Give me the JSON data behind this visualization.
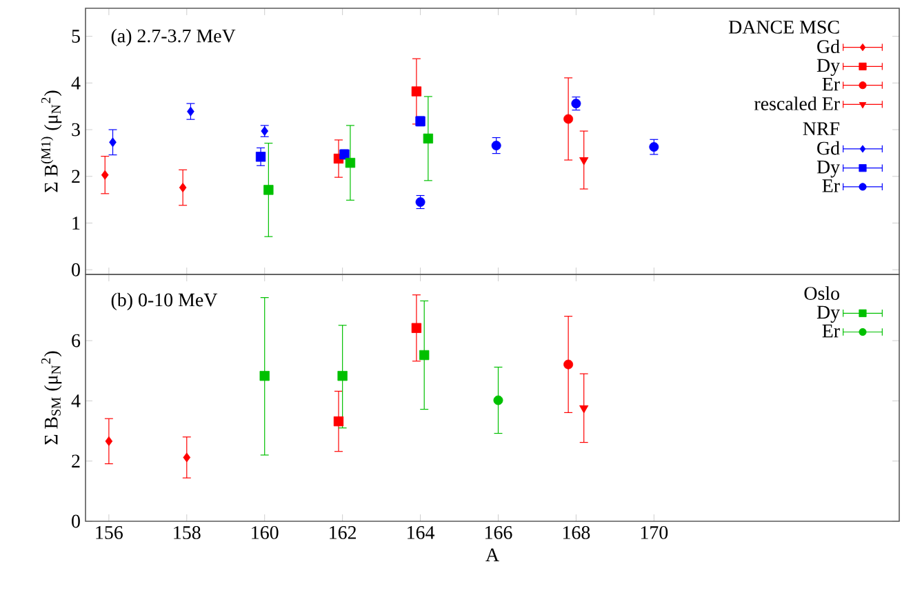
{
  "chart_data": [
    {
      "type": "scatter",
      "ylabel": "Σ B$^{(M1)}$ (μ$_{N}$$^{2}$)",
      "annotations": [
        "(a)  2.7-3.7 MeV",
        "DANCE MSC",
        "NRF"
      ],
      "xlim": [
        155.4,
        176.3
      ],
      "xticks": [
        156,
        158,
        160,
        162,
        164,
        166,
        168,
        170
      ],
      "ylim": [
        -0.1,
        5.6
      ],
      "yticks": [
        0,
        1,
        2,
        3,
        4,
        5
      ],
      "tick_labels": "y",
      "legend": "top right",
      "series": [
        {
          "name": "Gd",
          "color": "#ff0000",
          "marker": "diamond",
          "x": [
            155.9,
            157.9
          ],
          "values": [
            2.03,
            1.76
          ],
          "errors": [
            0.4,
            0.38
          ]
        },
        {
          "name": "Dy",
          "color": "#ff0000",
          "marker": "square",
          "x": [
            161.9,
            163.9
          ],
          "values": [
            2.38,
            3.82
          ],
          "errors": [
            0.4,
            0.7
          ]
        },
        {
          "name": "Er",
          "color": "#ff0000",
          "marker": "circle",
          "x": [
            167.8
          ],
          "values": [
            3.23
          ],
          "errors": [
            0.88
          ]
        },
        {
          "name": "rescaled Er",
          "color": "#ff0000",
          "marker": "triangle",
          "x": [
            168.2
          ],
          "values": [
            2.35
          ],
          "errors": [
            0.62
          ]
        },
        {
          "name": "Gd",
          "color": "#0000ff",
          "marker": "diamond",
          "x": [
            156.1,
            158.1,
            160.0
          ],
          "values": [
            2.73,
            3.39,
            2.97
          ],
          "errors": [
            0.27,
            0.17,
            0.12
          ]
        },
        {
          "name": "Dy",
          "color": "#0000ff",
          "marker": "square",
          "x": [
            159.9,
            162.05,
            164.0
          ],
          "values": [
            2.42,
            2.47,
            3.18
          ],
          "errors": [
            0.19,
            0.1,
            0.1
          ]
        },
        {
          "name": "Er",
          "color": "#0000ff",
          "marker": "circle",
          "x": [
            164.0,
            165.95,
            168.0,
            170.0
          ],
          "values": [
            1.45,
            2.66,
            3.56,
            2.63
          ],
          "errors": [
            0.14,
            0.17,
            0.14,
            0.16
          ]
        },
        {
          "color": "#00c000",
          "marker": "square",
          "x": [
            160.1,
            162.2,
            164.2
          ],
          "values": [
            1.71,
            2.29,
            2.81
          ],
          "errors": [
            1.0,
            0.8,
            0.9
          ]
        }
      ]
    },
    {
      "type": "scatter",
      "xlabel": "A",
      "ylabel": "Σ B$_{SM}$ (μ$_{N}$$^{2}$)",
      "annotations": [
        "(b)  0-10 MeV",
        "Oslo"
      ],
      "xlim": [
        155.4,
        176.3
      ],
      "xticks": [
        156,
        158,
        160,
        162,
        164,
        166,
        168,
        170
      ],
      "ylim": [
        0,
        8.2
      ],
      "yticks": [
        0,
        2,
        4,
        6
      ],
      "legend": "top right",
      "series": [
        {
          "color": "#ff0000",
          "marker": "diamond",
          "x": [
            156.0,
            158.0
          ],
          "values": [
            2.66,
            2.12
          ],
          "errors": [
            0.75,
            0.68
          ]
        },
        {
          "color": "#ff0000",
          "marker": "square",
          "x": [
            161.9,
            163.9
          ],
          "values": [
            3.32,
            6.42
          ],
          "errors": [
            1.0,
            1.1
          ]
        },
        {
          "color": "#ff0000",
          "marker": "circle",
          "x": [
            167.8
          ],
          "values": [
            5.21
          ],
          "errors": [
            1.6
          ]
        },
        {
          "color": "#ff0000",
          "marker": "triangle",
          "x": [
            168.2
          ],
          "values": [
            3.76
          ],
          "errors": [
            1.14
          ]
        },
        {
          "name": "Dy",
          "color": "#00c000",
          "marker": "square",
          "x": [
            160.0,
            162.0,
            164.1
          ],
          "values": [
            4.83,
            4.83,
            5.52
          ],
          "errors": [
            [
              2.2,
              7.43
            ],
            [
              3.1,
              6.51
            ],
            1.8
          ]
        },
        {
          "name": "Er",
          "color": "#00c000",
          "marker": "circle",
          "x": [
            166.0
          ],
          "values": [
            4.02
          ],
          "errors": [
            1.1
          ]
        }
      ]
    }
  ]
}
